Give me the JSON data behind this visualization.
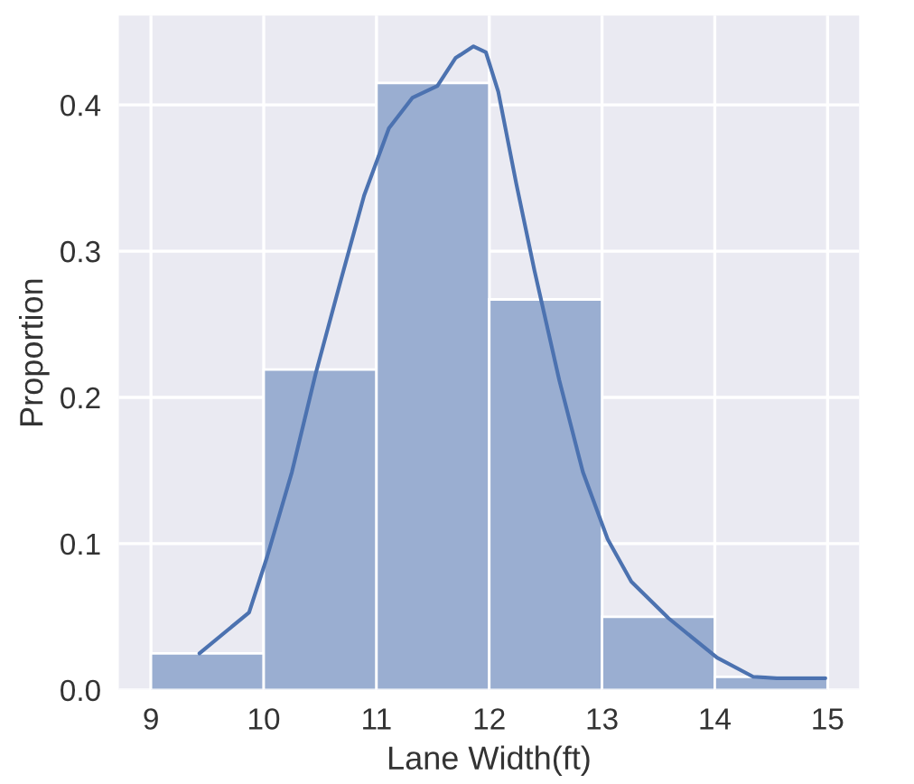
{
  "chart_data": {
    "type": "histogram",
    "xlabel": "Lane Width(ft)",
    "ylabel": "Proportion",
    "bins": [
      9,
      10,
      11,
      12,
      13,
      14,
      15
    ],
    "values": [
      0.025,
      0.219,
      0.415,
      0.267,
      0.05,
      0.009
    ],
    "color": "#9aaed1",
    "series": [
      {
        "type": "line",
        "color": "#4c72b0",
        "x": [
          9.43,
          9.87,
          10.03,
          10.25,
          10.46,
          10.68,
          10.89,
          11.11,
          11.32,
          11.54,
          11.7,
          11.86,
          11.97,
          12.08,
          12.24,
          12.4,
          12.62,
          12.83,
          13.05,
          13.26,
          13.59,
          14.02,
          14.34,
          14.55,
          14.98
        ],
        "values": [
          0.025,
          0.053,
          0.091,
          0.149,
          0.216,
          0.279,
          0.338,
          0.384,
          0.405,
          0.413,
          0.432,
          0.44,
          0.436,
          0.409,
          0.346,
          0.287,
          0.212,
          0.149,
          0.103,
          0.074,
          0.049,
          0.022,
          0.009,
          0.008,
          0.008
        ]
      }
    ],
    "xlim": [
      8.715,
      15.28
    ],
    "ylim": [
      0,
      0.461
    ],
    "xticks": [
      9,
      10,
      11,
      12,
      13,
      14,
      15
    ],
    "yticks": [
      {
        "value": 0,
        "label": "0.0"
      },
      0.1,
      0.2,
      0.3,
      0.4
    ],
    "grid": true
  }
}
